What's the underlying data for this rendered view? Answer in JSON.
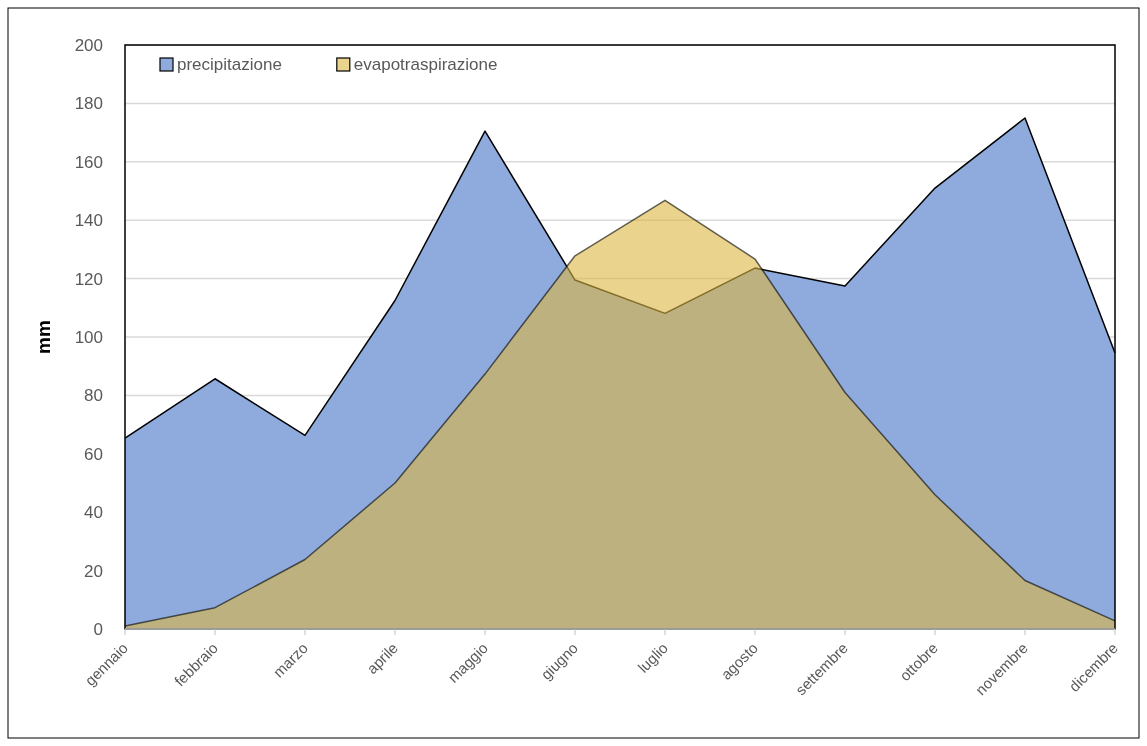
{
  "chart_data": {
    "type": "area",
    "ylabel": "mm",
    "categories": [
      "gennaio",
      "febbraio",
      "marzo",
      "aprile",
      "maggio",
      "giugno",
      "luglio",
      "agosto",
      "settembre",
      "ottobre",
      "novembre",
      "dicembre"
    ],
    "series": [
      {
        "name": "precipitazione",
        "color": "#8faadc",
        "values": [
          65.4,
          85.7,
          66.3,
          112.5,
          170.5,
          119.5,
          108.1,
          123.6,
          117.5,
          151,
          175,
          94.5
        ]
      },
      {
        "name": "evapotraspirazione",
        "color": "#dab641",
        "values": [
          1,
          7.3,
          23.8,
          50,
          87.3,
          127.8,
          146.8,
          126.7,
          81,
          46,
          16.6,
          2.8
        ]
      }
    ],
    "ylim": [
      0,
      200
    ],
    "yticks": [
      0,
      20,
      40,
      60,
      80,
      100,
      120,
      140,
      160,
      180,
      200
    ],
    "grid": "y",
    "legend": "top left"
  }
}
